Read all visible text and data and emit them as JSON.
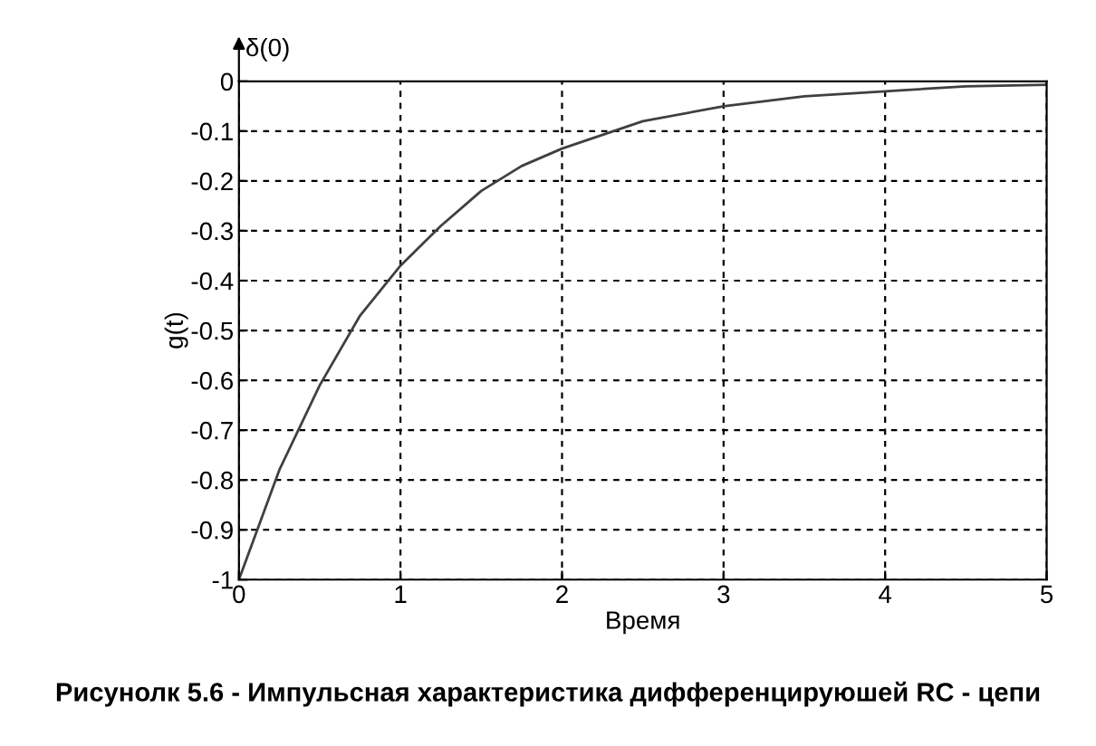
{
  "chart_data": {
    "type": "line",
    "xlabel": "Время",
    "ylabel": "g(t)",
    "x": [
      0,
      0.25,
      0.5,
      0.75,
      1,
      1.25,
      1.5,
      1.75,
      2,
      2.5,
      3,
      3.5,
      4,
      4.5,
      5
    ],
    "series": [
      {
        "color": "#404040",
        "values": [
          -1,
          -0.78,
          -0.61,
          -0.47,
          -0.37,
          -0.29,
          -0.22,
          -0.17,
          -0.135,
          -0.08,
          -0.05,
          -0.03,
          -0.02,
          -0.01,
          -0.007
        ]
      }
    ],
    "xlim": [
      0,
      5
    ],
    "ylim": [
      -1,
      0
    ],
    "xticks": [
      0,
      1,
      2,
      3,
      4,
      5
    ],
    "yticks": [
      -1,
      -0.9,
      -0.8,
      -0.7,
      -0.6,
      -0.5,
      -0.4,
      -0.3,
      -0.2,
      -0.1,
      0
    ],
    "grid": true,
    "line_style": "solid",
    "annotations": [
      "δ(0)",
      "Рисунолк 5.6 - Импульсная характеристика дифференцируюшей RC - цепи"
    ]
  }
}
